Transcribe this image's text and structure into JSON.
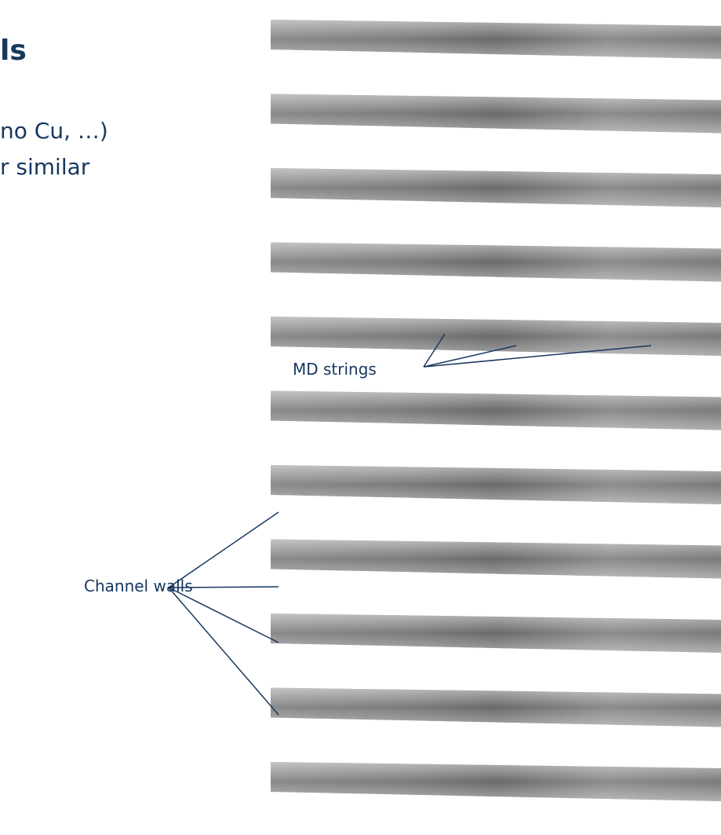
{
  "header": {
    "title": "ls"
  },
  "bullets": [
    "no Cu, …)",
    "r similar"
  ],
  "annotations": {
    "md_strings": "MD strings",
    "channel_walls": "Channel walls"
  }
}
